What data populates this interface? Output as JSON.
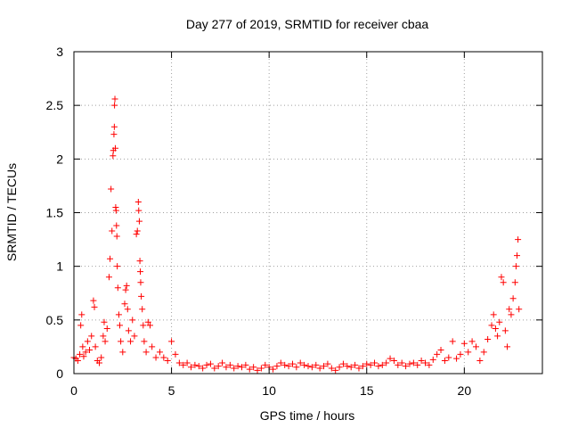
{
  "chart_data": {
    "type": "scatter",
    "title": "Day 277 of 2019, SRMTID for receiver cbaa",
    "xlabel": "GPS time / hours",
    "ylabel": "SRMTID / TECUs",
    "xlim": [
      0,
      24
    ],
    "ylim": [
      0,
      3
    ],
    "xticks": [
      0,
      5,
      10,
      15,
      20
    ],
    "yticks": [
      0,
      0.5,
      1,
      1.5,
      2,
      2.5,
      3
    ],
    "xtick_labels": [
      "0",
      "5",
      "10",
      "15",
      "20"
    ],
    "ytick_labels": [
      "0",
      "0.5",
      "1",
      "1.5",
      "2",
      "2.5",
      "3"
    ],
    "grid": true,
    "marker": "+",
    "series": [
      {
        "name": "SRMTID",
        "color": "#ff0000",
        "points": [
          [
            0.0,
            0.15
          ],
          [
            0.1,
            0.14
          ],
          [
            0.2,
            0.12
          ],
          [
            0.3,
            0.18
          ],
          [
            0.35,
            0.45
          ],
          [
            0.4,
            0.55
          ],
          [
            0.45,
            0.25
          ],
          [
            0.5,
            0.16
          ],
          [
            0.6,
            0.2
          ],
          [
            0.7,
            0.3
          ],
          [
            0.8,
            0.22
          ],
          [
            0.9,
            0.35
          ],
          [
            1.0,
            0.68
          ],
          [
            1.05,
            0.62
          ],
          [
            1.1,
            0.25
          ],
          [
            1.2,
            0.12
          ],
          [
            1.3,
            0.1
          ],
          [
            1.4,
            0.15
          ],
          [
            1.5,
            0.35
          ],
          [
            1.55,
            0.48
          ],
          [
            1.6,
            0.3
          ],
          [
            1.7,
            0.42
          ],
          [
            1.8,
            0.9
          ],
          [
            1.85,
            1.07
          ],
          [
            1.9,
            1.72
          ],
          [
            1.95,
            1.33
          ],
          [
            2.0,
            2.03
          ],
          [
            2.02,
            2.08
          ],
          [
            2.05,
            2.23
          ],
          [
            2.07,
            2.3
          ],
          [
            2.08,
            2.5
          ],
          [
            2.1,
            2.56
          ],
          [
            2.12,
            2.1
          ],
          [
            2.14,
            1.55
          ],
          [
            2.16,
            1.52
          ],
          [
            2.18,
            1.38
          ],
          [
            2.2,
            1.28
          ],
          [
            2.22,
            1.0
          ],
          [
            2.25,
            0.8
          ],
          [
            2.3,
            0.55
          ],
          [
            2.35,
            0.45
          ],
          [
            2.4,
            0.3
          ],
          [
            2.5,
            0.2
          ],
          [
            2.6,
            0.65
          ],
          [
            2.65,
            0.78
          ],
          [
            2.7,
            0.82
          ],
          [
            2.75,
            0.6
          ],
          [
            2.8,
            0.4
          ],
          [
            2.9,
            0.3
          ],
          [
            3.0,
            0.5
          ],
          [
            3.1,
            0.35
          ],
          [
            3.2,
            1.3
          ],
          [
            3.25,
            1.33
          ],
          [
            3.3,
            1.6
          ],
          [
            3.32,
            1.52
          ],
          [
            3.35,
            1.42
          ],
          [
            3.38,
            1.05
          ],
          [
            3.4,
            0.95
          ],
          [
            3.42,
            0.85
          ],
          [
            3.45,
            0.72
          ],
          [
            3.5,
            0.6
          ],
          [
            3.55,
            0.45
          ],
          [
            3.6,
            0.3
          ],
          [
            3.7,
            0.2
          ],
          [
            3.8,
            0.48
          ],
          [
            3.9,
            0.45
          ],
          [
            4.0,
            0.25
          ],
          [
            4.2,
            0.15
          ],
          [
            4.4,
            0.2
          ],
          [
            4.6,
            0.15
          ],
          [
            4.8,
            0.12
          ],
          [
            5.0,
            0.3
          ],
          [
            5.2,
            0.18
          ],
          [
            5.4,
            0.1
          ],
          [
            5.6,
            0.08
          ],
          [
            5.8,
            0.1
          ],
          [
            6.0,
            0.06
          ],
          [
            6.2,
            0.08
          ],
          [
            6.4,
            0.07
          ],
          [
            6.6,
            0.05
          ],
          [
            6.8,
            0.08
          ],
          [
            7.0,
            0.09
          ],
          [
            7.2,
            0.05
          ],
          [
            7.4,
            0.07
          ],
          [
            7.6,
            0.1
          ],
          [
            7.8,
            0.06
          ],
          [
            8.0,
            0.08
          ],
          [
            8.2,
            0.05
          ],
          [
            8.4,
            0.07
          ],
          [
            8.6,
            0.06
          ],
          [
            8.8,
            0.08
          ],
          [
            9.0,
            0.04
          ],
          [
            9.2,
            0.06
          ],
          [
            9.4,
            0.03
          ],
          [
            9.6,
            0.05
          ],
          [
            9.8,
            0.08
          ],
          [
            10.0,
            0.06
          ],
          [
            10.2,
            0.04
          ],
          [
            10.4,
            0.07
          ],
          [
            10.6,
            0.1
          ],
          [
            10.8,
            0.08
          ],
          [
            11.0,
            0.07
          ],
          [
            11.2,
            0.09
          ],
          [
            11.4,
            0.06
          ],
          [
            11.6,
            0.1
          ],
          [
            11.8,
            0.08
          ],
          [
            12.0,
            0.07
          ],
          [
            12.2,
            0.06
          ],
          [
            12.4,
            0.08
          ],
          [
            12.6,
            0.05
          ],
          [
            12.8,
            0.07
          ],
          [
            13.0,
            0.09
          ],
          [
            13.2,
            0.05
          ],
          [
            13.4,
            0.03
          ],
          [
            13.6,
            0.06
          ],
          [
            13.8,
            0.09
          ],
          [
            14.0,
            0.07
          ],
          [
            14.2,
            0.06
          ],
          [
            14.4,
            0.08
          ],
          [
            14.6,
            0.05
          ],
          [
            14.8,
            0.07
          ],
          [
            15.0,
            0.09
          ],
          [
            15.2,
            0.08
          ],
          [
            15.4,
            0.1
          ],
          [
            15.6,
            0.07
          ],
          [
            15.8,
            0.08
          ],
          [
            16.0,
            0.1
          ],
          [
            16.2,
            0.14
          ],
          [
            16.4,
            0.12
          ],
          [
            16.6,
            0.08
          ],
          [
            16.8,
            0.1
          ],
          [
            17.0,
            0.07
          ],
          [
            17.2,
            0.09
          ],
          [
            17.4,
            0.1
          ],
          [
            17.6,
            0.08
          ],
          [
            17.8,
            0.12
          ],
          [
            18.0,
            0.1
          ],
          [
            18.2,
            0.08
          ],
          [
            18.4,
            0.13
          ],
          [
            18.6,
            0.18
          ],
          [
            18.8,
            0.22
          ],
          [
            19.0,
            0.12
          ],
          [
            19.2,
            0.15
          ],
          [
            19.4,
            0.3
          ],
          [
            19.6,
            0.14
          ],
          [
            19.8,
            0.18
          ],
          [
            20.0,
            0.28
          ],
          [
            20.2,
            0.2
          ],
          [
            20.4,
            0.3
          ],
          [
            20.6,
            0.25
          ],
          [
            20.8,
            0.12
          ],
          [
            21.0,
            0.2
          ],
          [
            21.2,
            0.32
          ],
          [
            21.4,
            0.45
          ],
          [
            21.5,
            0.55
          ],
          [
            21.6,
            0.42
          ],
          [
            21.7,
            0.35
          ],
          [
            21.8,
            0.48
          ],
          [
            21.9,
            0.9
          ],
          [
            22.0,
            0.85
          ],
          [
            22.1,
            0.4
          ],
          [
            22.2,
            0.25
          ],
          [
            22.3,
            0.6
          ],
          [
            22.4,
            0.55
          ],
          [
            22.5,
            0.7
          ],
          [
            22.6,
            0.85
          ],
          [
            22.65,
            1.0
          ],
          [
            22.7,
            1.1
          ],
          [
            22.75,
            1.25
          ],
          [
            22.8,
            0.6
          ]
        ]
      }
    ]
  }
}
